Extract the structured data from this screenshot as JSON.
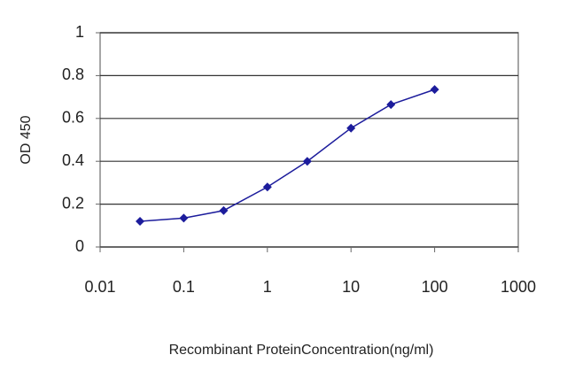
{
  "chart_data": {
    "type": "line",
    "x_label": "Recombinant ProteinConcentration(ng/ml)",
    "y_label": "OD 450",
    "x": [
      0.03,
      0.1,
      0.3,
      1,
      3,
      10,
      30,
      100
    ],
    "values": [
      0.12,
      0.135,
      0.17,
      0.28,
      0.4,
      0.555,
      0.665,
      0.735
    ],
    "color": "#1c1c9c",
    "xscale": "log",
    "xlim": [
      0.01,
      1000
    ],
    "xticks": [
      0.01,
      0.1,
      1,
      10,
      100,
      1000
    ],
    "ylim": [
      0,
      1
    ],
    "yticks": [
      0,
      0.2,
      0.4,
      0.6,
      0.8,
      1
    ],
    "grid": true
  }
}
